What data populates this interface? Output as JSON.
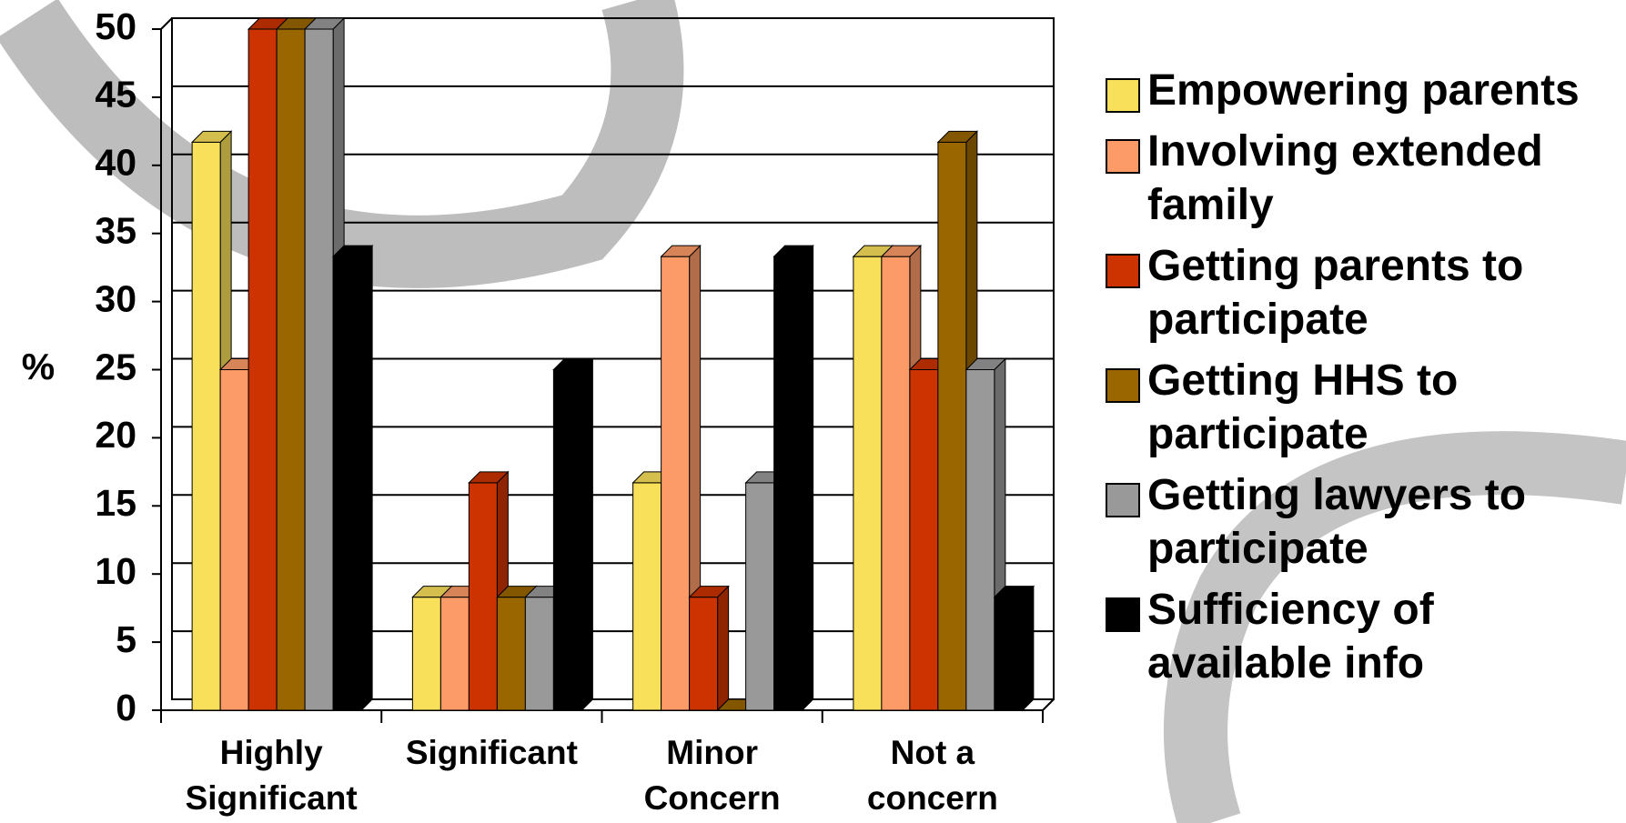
{
  "chart_data": {
    "type": "bar3d",
    "y_label": "%",
    "categories": [
      "Highly Significant",
      "Significant",
      "Minor Concern",
      "Not a concern"
    ],
    "series": [
      {
        "name": "Empowering parents",
        "color": "#f9e05a",
        "values": [
          41.7,
          8.3,
          16.7,
          33.3
        ]
      },
      {
        "name": "Involving extended family",
        "color": "#fd9b68",
        "values": [
          25,
          8.3,
          33.3,
          33.3
        ]
      },
      {
        "name": "Getting parents to participate",
        "color": "#cc3300",
        "values": [
          50,
          16.7,
          8.3,
          25
        ]
      },
      {
        "name": "Getting HHS to participate",
        "color": "#996600",
        "values": [
          50,
          8.3,
          0,
          41.7
        ]
      },
      {
        "name": "Getting lawyers to participate",
        "color": "#999999",
        "values": [
          50,
          8.3,
          16.7,
          25
        ]
      },
      {
        "name": "Sufficiency of available info",
        "color": "#000000",
        "values": [
          33.3,
          25,
          33.3,
          8.3
        ]
      }
    ],
    "ylim": [
      0,
      50
    ],
    "yticks": [
      0,
      5,
      10,
      15,
      20,
      25,
      30,
      35,
      40,
      45,
      50
    ],
    "grid": true,
    "legend": "right"
  }
}
